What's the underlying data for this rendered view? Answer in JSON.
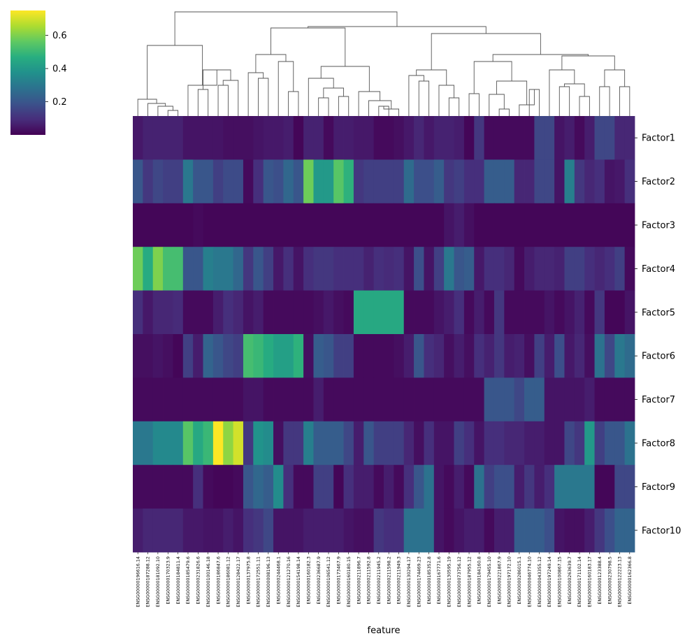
{
  "chart_data": {
    "type": "heatmap",
    "title": "",
    "xlabel": "feature",
    "ylabel": "",
    "colormap": "viridis",
    "colorbar": {
      "min": 0.0,
      "max": 0.75,
      "ticks": [
        0.2,
        0.4,
        0.6
      ],
      "tick_labels": [
        "0.2",
        "0.4",
        "0.6"
      ]
    },
    "rows": [
      "Factor1",
      "Factor2",
      "Factor3",
      "Factor4",
      "Factor5",
      "Factor6",
      "Factor7",
      "Factor8",
      "Factor9",
      "Factor10"
    ],
    "columns": [
      "ENSG00000196616.14",
      "ENSG00000187288.12",
      "ENSG00000181092.10",
      "ENSG00000170323.9",
      "ENSG00000184811.4",
      "ENSG00000185479.6",
      "ENSG00000231826.6",
      "ENSG00000100146.18",
      "ENSG00000186847.6",
      "ENSG00000186081.12",
      "ENSG00000128422.17",
      "ENSG00000137975.8",
      "ENSG00000172551.11",
      "ENSG00000008196.13",
      "ENSG00000244468.1",
      "ENSG00000121270.16",
      "ENSG00000154198.14",
      "ENSG00000160182.3",
      "ENSG00000236687.9",
      "ENSG00000106541.12",
      "ENSG00000173467.9",
      "ENSG00000160180.15",
      "ENSG00000211896.7",
      "ENSG00000211592.8",
      "ENSG00000211945.2",
      "ENSG00000211598.2",
      "ENSG00000211949.3",
      "ENSG00000130294.17",
      "ENSG00000174469.23",
      "ENSG00000185352.8",
      "ENSG00000167771.6",
      "ENSG00000130595.19",
      "ENSG00000073756.12",
      "ENSG00000187955.12",
      "ENSG00000184160.8",
      "ENSG00000179455.10",
      "ENSG00000221867.9",
      "ENSG00000197172.10",
      "ENSG00000286015.1",
      "ENSG00000046774.10",
      "ENSG00000043355.12",
      "ENSG00000197249.14",
      "ENSG00000100867.15",
      "ENSG00000263639.7",
      "ENSG00000171102.14",
      "ENSG00000160183.17",
      "ENSG00000123388.4",
      "ENSG00000230798.5",
      "ENSG00000122223.13",
      "ENSG00000162366.8"
    ],
    "values": [
      [
        0.05,
        0.07,
        0.07,
        0.07,
        0.07,
        0.04,
        0.04,
        0.04,
        0.04,
        0.03,
        0.03,
        0.03,
        0.04,
        0.05,
        0.05,
        0.06,
        0.01,
        0.07,
        0.07,
        0.02,
        0.06,
        0.06,
        0.05,
        0.05,
        0.02,
        0.02,
        0.03,
        0.05,
        0.08,
        0.05,
        0.07,
        0.07,
        0.06,
        0.01,
        0.12,
        0.02,
        0.02,
        0.02,
        0.02,
        0.02,
        0.16,
        0.16,
        0.04,
        0.06,
        0.02,
        0.06,
        0.16,
        0.16,
        0.08,
        0.08
      ],
      [
        0.2,
        0.12,
        0.16,
        0.14,
        0.14,
        0.3,
        0.2,
        0.2,
        0.14,
        0.17,
        0.17,
        0.02,
        0.1,
        0.2,
        0.18,
        0.25,
        0.2,
        0.58,
        0.4,
        0.4,
        0.55,
        0.48,
        0.12,
        0.14,
        0.14,
        0.14,
        0.14,
        0.26,
        0.18,
        0.18,
        0.22,
        0.12,
        0.14,
        0.1,
        0.1,
        0.22,
        0.22,
        0.22,
        0.08,
        0.08,
        0.16,
        0.16,
        0.04,
        0.32,
        0.12,
        0.08,
        0.1,
        0.04,
        0.05,
        0.1
      ],
      [
        0.01,
        0.01,
        0.01,
        0.01,
        0.01,
        0.01,
        0.02,
        0.01,
        0.01,
        0.01,
        0.01,
        0.01,
        0.01,
        0.01,
        0.01,
        0.01,
        0.01,
        0.01,
        0.01,
        0.01,
        0.01,
        0.01,
        0.01,
        0.01,
        0.01,
        0.01,
        0.01,
        0.01,
        0.01,
        0.01,
        0.01,
        0.04,
        0.06,
        0.03,
        0.01,
        0.01,
        0.01,
        0.01,
        0.01,
        0.01,
        0.01,
        0.01,
        0.01,
        0.01,
        0.01,
        0.01,
        0.01,
        0.01,
        0.01,
        0.01
      ],
      [
        0.58,
        0.46,
        0.6,
        0.52,
        0.52,
        0.2,
        0.2,
        0.32,
        0.3,
        0.3,
        0.25,
        0.12,
        0.2,
        0.14,
        0.05,
        0.1,
        0.04,
        0.1,
        0.12,
        0.12,
        0.1,
        0.1,
        0.1,
        0.07,
        0.1,
        0.09,
        0.1,
        0.04,
        0.18,
        0.04,
        0.14,
        0.3,
        0.2,
        0.22,
        0.05,
        0.1,
        0.1,
        0.08,
        0.02,
        0.06,
        0.08,
        0.08,
        0.07,
        0.14,
        0.14,
        0.1,
        0.08,
        0.1,
        0.14,
        0.02
      ],
      [
        0.1,
        0.05,
        0.08,
        0.08,
        0.09,
        0.02,
        0.02,
        0.02,
        0.06,
        0.1,
        0.08,
        0.04,
        0.06,
        0.02,
        0.02,
        0.02,
        0.02,
        0.02,
        0.03,
        0.05,
        0.03,
        0.02,
        0.45,
        0.45,
        0.45,
        0.45,
        0.45,
        0.02,
        0.02,
        0.02,
        0.04,
        0.06,
        0.1,
        0.02,
        0.06,
        0.02,
        0.12,
        0.02,
        0.02,
        0.02,
        0.02,
        0.04,
        0.02,
        0.04,
        0.07,
        0.02,
        0.12,
        0.01,
        0.01,
        0.04
      ],
      [
        0.03,
        0.03,
        0.04,
        0.03,
        0.01,
        0.14,
        0.06,
        0.24,
        0.2,
        0.16,
        0.14,
        0.52,
        0.5,
        0.46,
        0.42,
        0.42,
        0.48,
        0.03,
        0.22,
        0.2,
        0.14,
        0.14,
        0.02,
        0.02,
        0.02,
        0.02,
        0.03,
        0.06,
        0.2,
        0.1,
        0.08,
        0.03,
        0.06,
        0.03,
        0.1,
        0.07,
        0.12,
        0.06,
        0.07,
        0.03,
        0.14,
        0.06,
        0.18,
        0.05,
        0.08,
        0.03,
        0.28,
        0.16,
        0.3,
        0.26
      ],
      [
        0.02,
        0.02,
        0.02,
        0.02,
        0.02,
        0.02,
        0.02,
        0.02,
        0.02,
        0.02,
        0.02,
        0.04,
        0.04,
        0.02,
        0.02,
        0.02,
        0.02,
        0.02,
        0.06,
        0.02,
        0.02,
        0.02,
        0.02,
        0.02,
        0.02,
        0.02,
        0.02,
        0.02,
        0.02,
        0.02,
        0.02,
        0.02,
        0.02,
        0.02,
        0.02,
        0.2,
        0.2,
        0.2,
        0.16,
        0.22,
        0.22,
        0.04,
        0.04,
        0.04,
        0.04,
        0.06,
        0.02,
        0.02,
        0.02,
        0.02
      ],
      [
        0.3,
        0.3,
        0.35,
        0.35,
        0.35,
        0.55,
        0.45,
        0.5,
        0.75,
        0.62,
        0.7,
        0.12,
        0.38,
        0.36,
        0.03,
        0.12,
        0.12,
        0.32,
        0.22,
        0.22,
        0.22,
        0.16,
        0.06,
        0.2,
        0.14,
        0.14,
        0.14,
        0.08,
        0.03,
        0.1,
        0.04,
        0.04,
        0.14,
        0.1,
        0.04,
        0.1,
        0.1,
        0.08,
        0.08,
        0.06,
        0.06,
        0.04,
        0.04,
        0.16,
        0.12,
        0.4,
        0.14,
        0.2,
        0.2,
        0.28
      ],
      [
        0.02,
        0.02,
        0.02,
        0.02,
        0.02,
        0.02,
        0.1,
        0.02,
        0.01,
        0.01,
        0.02,
        0.2,
        0.25,
        0.22,
        0.36,
        0.1,
        0.02,
        0.02,
        0.14,
        0.14,
        0.01,
        0.1,
        0.06,
        0.06,
        0.02,
        0.06,
        0.02,
        0.1,
        0.2,
        0.28,
        0.04,
        0.02,
        0.06,
        0.02,
        0.28,
        0.14,
        0.18,
        0.18,
        0.06,
        0.12,
        0.06,
        0.1,
        0.3,
        0.3,
        0.3,
        0.3,
        0.01,
        0.01,
        0.16,
        0.16
      ],
      [
        0.06,
        0.08,
        0.08,
        0.08,
        0.08,
        0.05,
        0.05,
        0.04,
        0.04,
        0.06,
        0.04,
        0.1,
        0.12,
        0.16,
        0.04,
        0.04,
        0.04,
        0.06,
        0.06,
        0.06,
        0.06,
        0.04,
        0.03,
        0.03,
        0.12,
        0.1,
        0.1,
        0.28,
        0.28,
        0.28,
        0.04,
        0.02,
        0.04,
        0.06,
        0.06,
        0.02,
        0.06,
        0.06,
        0.22,
        0.22,
        0.22,
        0.18,
        0.04,
        0.03,
        0.03,
        0.06,
        0.12,
        0.18,
        0.24,
        0.24
      ]
    ],
    "grid": false,
    "legend": "colorbar top-left"
  }
}
